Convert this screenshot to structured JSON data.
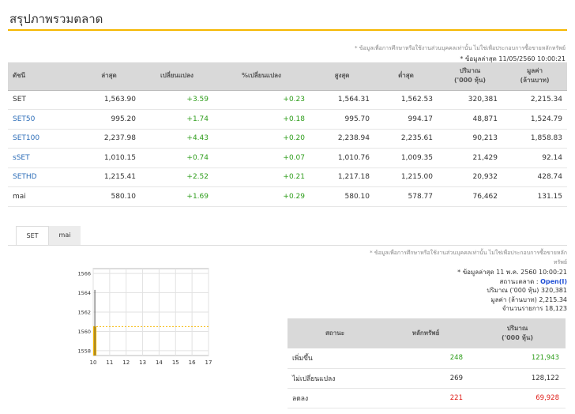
{
  "page": {
    "title": "สรุปภาพรวมตลาด"
  },
  "top_note": "* ข้อมูลเพื่อการศึกษาหรือใช้งานส่วนบุคคลเท่านั้น ไม่ใช่เพื่อประกอบการซื้อขายหลักทรัพย์",
  "top_updated": "* ข้อมูลล่าสุด 11/05/2560 10:00:21",
  "index_table": {
    "headers": [
      "ดัชนี",
      "ล่าสุด",
      "เปลี่ยนแปลง",
      "%เปลี่ยนแปลง",
      "สูงสุด",
      "ต่ำสุด",
      "ปริมาณ\n('000 หุ้น)",
      "มูลค่า\n(ล้านบาท)"
    ],
    "header_lines": [
      [
        "ดัชนี"
      ],
      [
        "ล่าสุด"
      ],
      [
        "เปลี่ยนแปลง"
      ],
      [
        "%เปลี่ยนแปลง"
      ],
      [
        "สูงสุด"
      ],
      [
        "ต่ำสุด"
      ],
      [
        "ปริมาณ",
        "('000 หุ้น)"
      ],
      [
        "มูลค่า",
        "(ล้านบาท)"
      ]
    ],
    "rows": [
      {
        "name": "SET",
        "link": false,
        "last": "1,563.90",
        "change": "+3.59",
        "pct": "+0.23",
        "high": "1,564.31",
        "low": "1,562.53",
        "volume": "320,381",
        "value": "2,215.34"
      },
      {
        "name": "SET50",
        "link": true,
        "last": "995.20",
        "change": "+1.74",
        "pct": "+0.18",
        "high": "995.70",
        "low": "994.17",
        "volume": "48,871",
        "value": "1,524.79"
      },
      {
        "name": "SET100",
        "link": true,
        "last": "2,237.98",
        "change": "+4.43",
        "pct": "+0.20",
        "high": "2,238.94",
        "low": "2,235.61",
        "volume": "90,213",
        "value": "1,858.83"
      },
      {
        "name": "sSET",
        "link": true,
        "last": "1,010.15",
        "change": "+0.74",
        "pct": "+0.07",
        "high": "1,010.76",
        "low": "1,009.35",
        "volume": "21,429",
        "value": "92.14"
      },
      {
        "name": "SETHD",
        "link": true,
        "last": "1,215.41",
        "change": "+2.52",
        "pct": "+0.21",
        "high": "1,217.18",
        "low": "1,215.00",
        "volume": "20,932",
        "value": "428.74"
      },
      {
        "name": "mai",
        "link": false,
        "last": "580.10",
        "change": "+1.69",
        "pct": "+0.29",
        "high": "580.10",
        "low": "578.77",
        "volume": "76,462",
        "value": "131.15"
      }
    ]
  },
  "tabs": [
    {
      "label": "SET",
      "active": true
    },
    {
      "label": "mai",
      "active": false
    }
  ],
  "chart_data": {
    "type": "line",
    "x_ticks": [
      "10",
      "11",
      "12",
      "13",
      "14",
      "15",
      "16",
      "17"
    ],
    "y_ticks": [
      "1558",
      "1560",
      "1562",
      "1564",
      "1566"
    ],
    "ylim": [
      1557.5,
      1566.5
    ],
    "xlim": [
      10,
      17
    ],
    "reference_line": 1560.5,
    "intraday_bar": {
      "x": 10.1,
      "high": 1564.3,
      "low": 1557.5
    },
    "colors": {
      "line": "#555555",
      "area": "#f5b700",
      "reference": "#f5b700"
    }
  },
  "mid_note": "* ข้อมูลเพื่อการศึกษาหรือใช้งานส่วนบุคคลเท่านั้น ไม่ใช่เพื่อประกอบการซื้อขายหลักทรัพย์",
  "mid_note_lines": [
    "* ข้อมูลเพื่อการศึกษาหรือใช้งานส่วนบุคคลเท่านั้น ไม่ใช่เพื่อประกอบการซื้อขายหลัก",
    "ทรัพย์"
  ],
  "market_info": {
    "updated": "* ข้อมูลล่าสุด 11 พ.ค. 2560 10:00:21",
    "status_label": "สถานะตลาด :",
    "status_value": "Open(I)",
    "volume_label": "ปริมาณ ('000 หุ้น)",
    "volume_value": "320,381",
    "value_label": "มูลค่า (ล้านบาท)",
    "value_value": "2,215.34",
    "trades_label": "จำนวนรายการ",
    "trades_value": "18,123"
  },
  "status_table": {
    "headers": [
      "สถานะ",
      "หลักทรัพย์",
      "ปริมาณ\n('000 หุ้น)"
    ],
    "header_lines": [
      [
        "สถานะ"
      ],
      [
        "หลักทรัพย์"
      ],
      [
        "ปริมาณ",
        "('000 หุ้น)"
      ]
    ],
    "rows": [
      {
        "name": "เพิ่มขึ้น",
        "count": "248",
        "volume": "121,943",
        "color": "green"
      },
      {
        "name": "ไม่เปลี่ยนแปลง",
        "count": "269",
        "volume": "128,122",
        "color": "dark"
      },
      {
        "name": "ลดลง",
        "count": "221",
        "volume": "69,928",
        "color": "red"
      }
    ]
  }
}
